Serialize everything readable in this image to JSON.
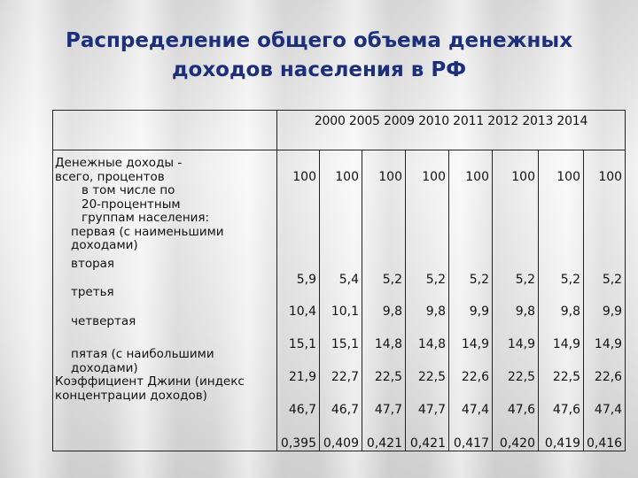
{
  "title": {
    "line1": "Распределение общего объема денежных",
    "line2": "доходов населения  в РФ"
  },
  "table": {
    "years": "2000  2005  2009  2010  2011  2012  2013  2014",
    "labels": [
      "Денежные доходы -",
      "всего, процентов",
      "в том числе по",
      "20-процентным",
      "группам населения:",
      "первая (с наименьшими",
      "доходами)",
      "вторая",
      "третья",
      "четвертая",
      "пятая (с наибольшими",
      "доходами)",
      "Коэффициент Джини (индекс",
      "концентрации доходов)"
    ],
    "columns": [
      [
        "100",
        "5,9",
        "10,4",
        "15,1",
        "21,9",
        "46,7",
        "0,395"
      ],
      [
        "100",
        "5,4",
        "10,1",
        "15,1",
        "22,7",
        "46,7",
        "0,409"
      ],
      [
        "100",
        "5,2",
        "9,8",
        "14,8",
        "22,5",
        "47,7",
        "0,421"
      ],
      [
        "100",
        "5,2",
        "9,8",
        "14,8",
        "22,5",
        "47,7",
        "0,421"
      ],
      [
        "100",
        "5,2",
        "9,9",
        "14,9",
        "22,6",
        "47,4",
        "0,417"
      ],
      [
        "100",
        "5,2",
        "9,8",
        "14,9",
        "22,5",
        "47,6",
        "0,420"
      ],
      [
        "100",
        "5,2",
        "9,8",
        "14,9",
        "22,5",
        "47,6",
        "0,419"
      ],
      [
        "100",
        "5,2",
        "9,9",
        "14,9",
        "22,6",
        "47,4",
        "0,416"
      ]
    ]
  }
}
